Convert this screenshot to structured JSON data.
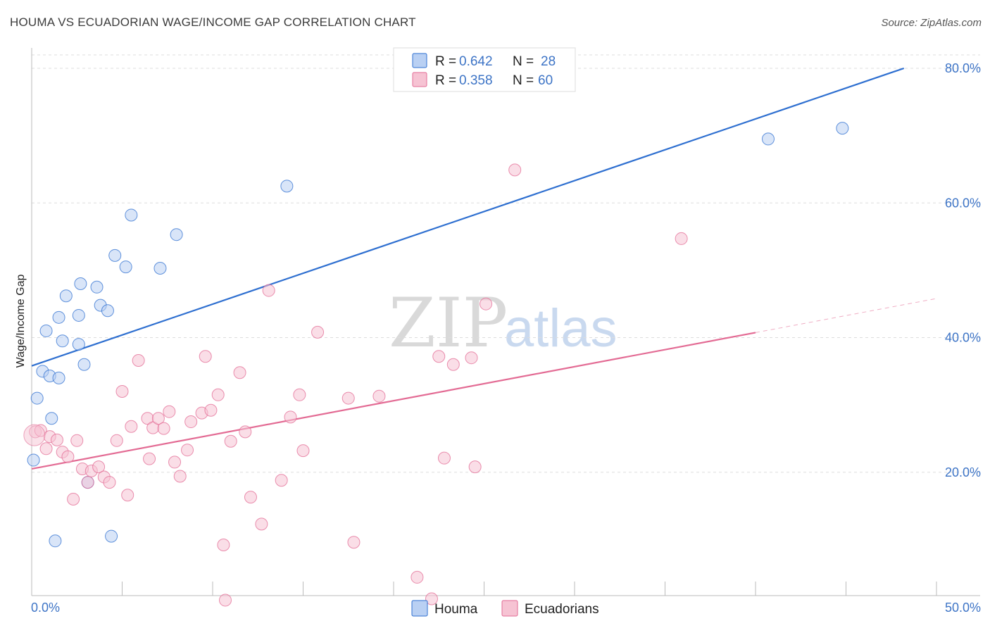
{
  "header": {
    "title": "HOUMA VS ECUADORIAN WAGE/INCOME GAP CORRELATION CHART",
    "source": "Source: ZipAtlas.com"
  },
  "watermark": {
    "part1": "ZIP",
    "part2": "atlas"
  },
  "colors": {
    "houma": "#2e6fd0",
    "houma_fill": "#b9d0f3",
    "ecuadorians": "#e36b94",
    "ecuadorians_fill": "#f6c3d3",
    "tick_label": "#3d74c6",
    "grid": "#dddddd"
  },
  "chart_data": {
    "type": "scatter",
    "title": "HOUMA VS ECUADORIAN WAGE/INCOME GAP CORRELATION CHART",
    "xlabel": "",
    "ylabel": "Wage/Income Gap",
    "xlim": [
      0,
      50
    ],
    "ylim": [
      0,
      80
    ],
    "x_tick_labels": {
      "min": "0.0%",
      "max": "50.0%"
    },
    "y_ticks": [
      20,
      40,
      60,
      80
    ],
    "y_tick_labels": [
      "20.0%",
      "40.0%",
      "60.0%",
      "80.0%"
    ],
    "grid": true,
    "legend_position": "top-center",
    "stats": [
      {
        "series": "Houma",
        "r_label": "R = ",
        "r": "0.642",
        "n_label": "N = ",
        "n": "28"
      },
      {
        "series": "Ecuadorians",
        "r_label": "R = ",
        "r": "0.358",
        "n_label": "N = ",
        "n": "60"
      }
    ],
    "series": [
      {
        "name": "Houma",
        "color": "#2e6fd0",
        "trend": {
          "x0": 0,
          "y0": 35.8,
          "x1": 48.2,
          "y1": 80.0,
          "solid_to": 48.2
        },
        "points": [
          [
            0.1,
            21.8
          ],
          [
            0.3,
            31.0
          ],
          [
            0.6,
            35.0
          ],
          [
            1.0,
            34.3
          ],
          [
            1.1,
            28.0
          ],
          [
            0.8,
            41.0
          ],
          [
            1.5,
            43.0
          ],
          [
            1.5,
            34.0
          ],
          [
            1.7,
            39.5
          ],
          [
            1.9,
            46.2
          ],
          [
            2.6,
            39.0
          ],
          [
            2.7,
            48.0
          ],
          [
            2.9,
            36.0
          ],
          [
            3.1,
            18.5
          ],
          [
            3.6,
            47.5
          ],
          [
            3.8,
            44.8
          ],
          [
            4.2,
            44.0
          ],
          [
            4.6,
            52.2
          ],
          [
            5.2,
            50.5
          ],
          [
            5.5,
            58.2
          ],
          [
            7.1,
            50.3
          ],
          [
            8.0,
            55.3
          ],
          [
            14.1,
            62.5
          ],
          [
            40.7,
            69.5
          ],
          [
            44.8,
            71.1
          ],
          [
            1.3,
            9.8
          ],
          [
            4.4,
            10.5
          ],
          [
            2.6,
            43.3
          ]
        ]
      },
      {
        "name": "Ecuadorians",
        "color": "#e36b94",
        "trend": {
          "x0": 0,
          "y0": 20.5,
          "x1": 50.0,
          "y1": 45.8,
          "solid_to": 40.0
        },
        "points": [
          [
            0.2,
            26.0
          ],
          [
            0.5,
            26.2
          ],
          [
            1.0,
            25.3
          ],
          [
            0.8,
            23.5
          ],
          [
            1.4,
            24.8
          ],
          [
            1.7,
            23.0
          ],
          [
            2.0,
            22.3
          ],
          [
            2.3,
            16.0
          ],
          [
            2.5,
            24.7
          ],
          [
            2.8,
            20.5
          ],
          [
            3.1,
            18.5
          ],
          [
            3.3,
            20.2
          ],
          [
            3.7,
            20.8
          ],
          [
            4.0,
            19.3
          ],
          [
            4.3,
            18.5
          ],
          [
            4.7,
            24.7
          ],
          [
            5.0,
            32.0
          ],
          [
            5.3,
            16.6
          ],
          [
            5.5,
            26.8
          ],
          [
            5.9,
            36.6
          ],
          [
            6.4,
            28.0
          ],
          [
            6.5,
            22.0
          ],
          [
            6.7,
            26.6
          ],
          [
            7.0,
            28.0
          ],
          [
            7.3,
            26.5
          ],
          [
            7.6,
            29.0
          ],
          [
            7.9,
            21.5
          ],
          [
            8.2,
            19.4
          ],
          [
            8.6,
            23.3
          ],
          [
            8.8,
            27.5
          ],
          [
            9.4,
            28.8
          ],
          [
            9.6,
            37.2
          ],
          [
            9.9,
            29.2
          ],
          [
            10.3,
            31.5
          ],
          [
            10.6,
            9.2
          ],
          [
            10.7,
            1.0
          ],
          [
            11.0,
            24.6
          ],
          [
            11.5,
            34.8
          ],
          [
            11.8,
            26.0
          ],
          [
            12.1,
            16.3
          ],
          [
            12.7,
            12.3
          ],
          [
            13.1,
            47.0
          ],
          [
            13.8,
            18.8
          ],
          [
            14.3,
            28.2
          ],
          [
            14.8,
            31.5
          ],
          [
            15.0,
            23.2
          ],
          [
            15.8,
            40.8
          ],
          [
            17.5,
            31.0
          ],
          [
            17.8,
            9.6
          ],
          [
            19.2,
            31.3
          ],
          [
            21.3,
            4.4
          ],
          [
            22.1,
            1.2
          ],
          [
            22.5,
            37.2
          ],
          [
            22.8,
            22.1
          ],
          [
            23.3,
            36.0
          ],
          [
            24.3,
            37.0
          ],
          [
            24.5,
            20.8
          ],
          [
            25.1,
            45.0
          ],
          [
            26.7,
            64.9
          ],
          [
            35.9,
            54.7
          ]
        ]
      }
    ]
  }
}
